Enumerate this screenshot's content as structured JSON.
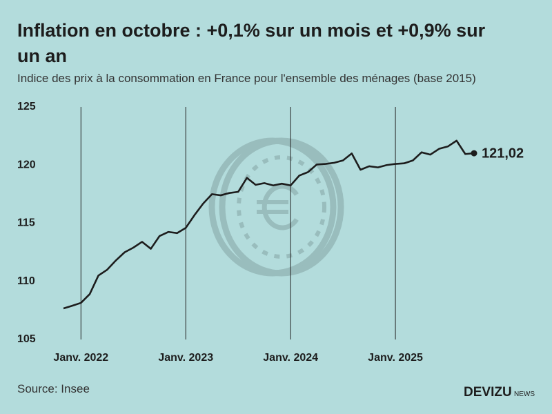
{
  "chart_data": {
    "type": "line",
    "title_lines": [
      "Inflation en octobre : +0,1% sur un mois et +0,9% sur",
      "un an"
    ],
    "subtitle": "Indice des prix à la consommation en France pour l'ensemble des ménages (base 2015)",
    "source": "Source: Insee",
    "brand": "DEVIZU",
    "brand_suffix": "NEWS",
    "x": [
      "2021-11",
      "2021-12",
      "2022-01",
      "2022-02",
      "2022-03",
      "2022-04",
      "2022-05",
      "2022-06",
      "2022-07",
      "2022-08",
      "2022-09",
      "2022-10",
      "2022-11",
      "2022-12",
      "2023-01",
      "2023-02",
      "2023-03",
      "2023-04",
      "2023-05",
      "2023-06",
      "2023-07",
      "2023-08",
      "2023-09",
      "2023-10",
      "2023-11",
      "2023-12",
      "2024-01",
      "2024-02",
      "2024-03",
      "2024-04",
      "2024-05",
      "2024-06",
      "2024-07",
      "2024-08",
      "2024-09",
      "2024-10",
      "2024-11",
      "2024-12",
      "2025-01",
      "2025-02",
      "2025-03",
      "2025-04",
      "2025-05",
      "2025-06",
      "2025-07",
      "2025-08",
      "2025-09",
      "2025-10"
    ],
    "series": [
      {
        "name": "Indice des prix",
        "color": "#1d1d1d",
        "values": [
          107.67,
          107.9,
          108.15,
          108.9,
          110.5,
          111.0,
          111.8,
          112.5,
          112.9,
          113.4,
          112.8,
          113.9,
          114.25,
          114.15,
          114.6,
          115.7,
          116.7,
          117.5,
          117.4,
          117.6,
          117.7,
          118.9,
          118.3,
          118.45,
          118.25,
          118.4,
          118.25,
          119.1,
          119.4,
          120.05,
          120.1,
          120.2,
          120.4,
          121.0,
          119.6,
          119.9,
          119.8,
          120.0,
          120.1,
          120.15,
          120.4,
          121.1,
          120.9,
          121.4,
          121.6,
          122.1,
          120.95,
          121.02
        ],
        "value_labels": [
          null,
          null,
          null,
          null,
          null,
          null,
          null,
          null,
          null,
          null,
          null,
          null,
          null,
          null,
          null,
          null,
          null,
          null,
          null,
          null,
          null,
          null,
          null,
          null,
          null,
          null,
          null,
          null,
          null,
          null,
          null,
          null,
          null,
          null,
          null,
          null,
          null,
          null,
          null,
          null,
          null,
          null,
          null,
          null,
          null,
          null,
          null,
          "121,02"
        ]
      }
    ],
    "xlim": [
      "2021-11",
      "2025-10"
    ],
    "xticks": [
      {
        "value": "2022-01",
        "label": "Janv. 2022"
      },
      {
        "value": "2023-01",
        "label": "Janv. 2023"
      },
      {
        "value": "2024-01",
        "label": "Janv. 2024"
      },
      {
        "value": "2025-01",
        "label": "Janv. 2025"
      }
    ],
    "ylim": [
      105,
      125
    ],
    "yticks": [
      105,
      110,
      115,
      120,
      125
    ],
    "grid": true
  }
}
